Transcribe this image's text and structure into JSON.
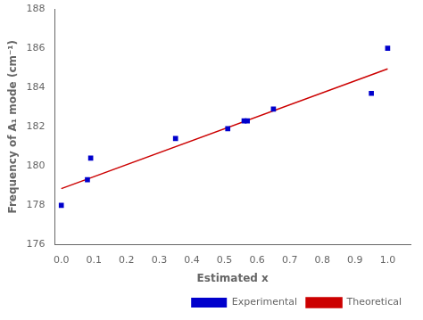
{
  "chart_data": {
    "type": "scatter",
    "xlabel": "Estimated x",
    "ylabel": "Frequency of A₁ mode (cm⁻¹)",
    "series": [
      {
        "name": "Experimental",
        "type": "scatter",
        "color": "#0000cc",
        "marker": "square",
        "x": [
          0.0,
          0.08,
          0.09,
          0.35,
          0.51,
          0.56,
          0.57,
          0.65,
          0.95,
          1.0
        ],
        "values": [
          178.0,
          179.3,
          180.4,
          181.4,
          181.9,
          182.3,
          182.3,
          182.9,
          183.7,
          186.0
        ]
      },
      {
        "name": "Theoretical",
        "type": "line",
        "color": "#cc0000",
        "line_style": "solid",
        "x": [
          0.0,
          1.0
        ],
        "values": [
          178.85,
          184.95
        ]
      }
    ],
    "xlim": [
      -0.02,
      1.07
    ],
    "ylim": [
      176,
      188
    ],
    "xticks": [
      {
        "value": 0.0,
        "label": "0.0"
      },
      0.1,
      0.2,
      0.3,
      0.4,
      0.5,
      0.6,
      0.7,
      0.8,
      0.9,
      {
        "value": 1.0,
        "label": "1.0"
      }
    ],
    "yticks": [
      176,
      178,
      180,
      182,
      184,
      186,
      188
    ],
    "grid": false,
    "legend": "lower right"
  }
}
